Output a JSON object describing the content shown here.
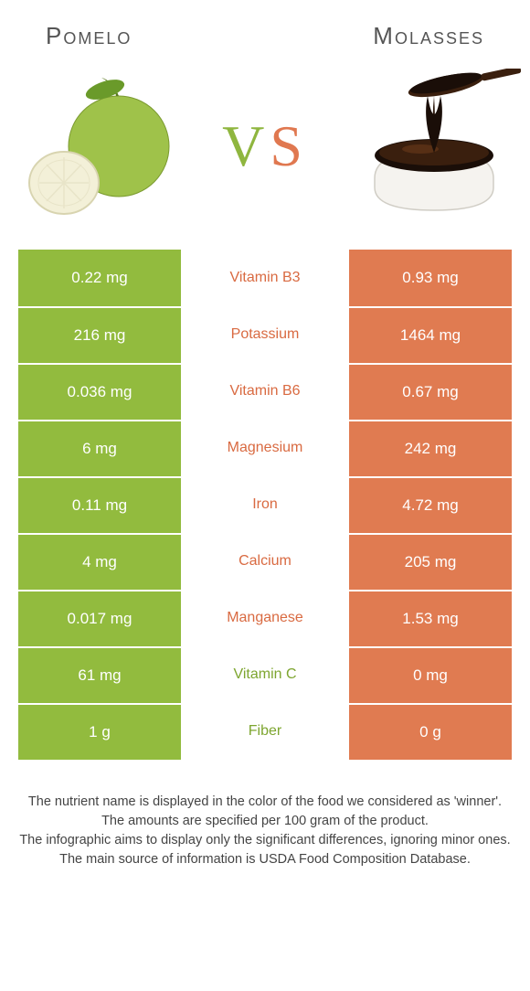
{
  "colors": {
    "left_bg": "#92bb3e",
    "right_bg": "#e07b51",
    "nutrient_left_win": "#7da52f",
    "nutrient_right_win": "#d96a41",
    "header_text": "#555555",
    "footer_text": "#444444",
    "white": "#ffffff"
  },
  "header": {
    "left_title": "Pomelo",
    "right_title": "molasses",
    "vs_v": "V",
    "vs_s": "S"
  },
  "rows": [
    {
      "nutrient": "Vitamin B3",
      "left": "0.22 mg",
      "right": "0.93 mg",
      "winner": "right"
    },
    {
      "nutrient": "Potassium",
      "left": "216 mg",
      "right": "1464 mg",
      "winner": "right"
    },
    {
      "nutrient": "Vitamin B6",
      "left": "0.036 mg",
      "right": "0.67 mg",
      "winner": "right"
    },
    {
      "nutrient": "Magnesium",
      "left": "6 mg",
      "right": "242 mg",
      "winner": "right"
    },
    {
      "nutrient": "Iron",
      "left": "0.11 mg",
      "right": "4.72 mg",
      "winner": "right"
    },
    {
      "nutrient": "Calcium",
      "left": "4 mg",
      "right": "205 mg",
      "winner": "right"
    },
    {
      "nutrient": "Manganese",
      "left": "0.017 mg",
      "right": "1.53 mg",
      "winner": "right"
    },
    {
      "nutrient": "Vitamin C",
      "left": "61 mg",
      "right": "0 mg",
      "winner": "left"
    },
    {
      "nutrient": "Fiber",
      "left": "1 g",
      "right": "0 g",
      "winner": "left"
    }
  ],
  "footer": {
    "line1": "The nutrient name is displayed in the color of the food we considered as 'winner'.",
    "line2": "The amounts are specified per 100 gram of the product.",
    "line3": "The infographic aims to display only the significant differences, ignoring minor ones.",
    "line4": "The main source of information is USDA Food Composition Database."
  }
}
